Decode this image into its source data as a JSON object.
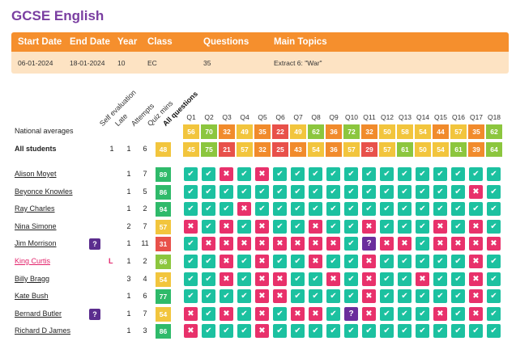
{
  "title": "GCSE English",
  "info": {
    "headers": {
      "start_date": "Start Date",
      "end_date": "End Date",
      "year": "Year",
      "class": "Class",
      "questions": "Questions",
      "main_topics": "Main Topics"
    },
    "values": {
      "start_date": "06-01-2024",
      "end_date": "18-01-2024",
      "year": "10",
      "class": "EC",
      "questions": "35",
      "main_topics": "Extract 6: \"War\""
    }
  },
  "column_headers": {
    "self_evaluation": "Self evaluation",
    "late": "Late",
    "attempts": "Attempts",
    "quiz_mins": "Quiz mins",
    "all_questions": "All questions"
  },
  "questions": [
    "Q1",
    "Q2",
    "Q3",
    "Q4",
    "Q5",
    "Q6",
    "Q7",
    "Q8",
    "Q9",
    "Q10",
    "Q11",
    "Q12",
    "Q13",
    "Q14",
    "Q15",
    "Q16",
    "Q17",
    "Q18"
  ],
  "national_averages": {
    "label": "National averages",
    "values": [
      "56",
      "70",
      "32",
      "49",
      "35",
      "22",
      "49",
      "62",
      "36",
      "72",
      "32",
      "50",
      "58",
      "54",
      "44",
      "57",
      "35",
      "62"
    ]
  },
  "all_students": {
    "label": "All students",
    "late": "1",
    "attempts": "1",
    "quiz_mins": "6",
    "score": "48",
    "values": [
      "45",
      "75",
      "21",
      "57",
      "32",
      "25",
      "43",
      "54",
      "36",
      "57",
      "29",
      "57",
      "61",
      "50",
      "54",
      "61",
      "39",
      "64"
    ]
  },
  "colors": {
    "title": "#7a3ea1",
    "header_orange": "#f58f2d",
    "info_row": "#fde3c3",
    "correct": "#1cc1a0",
    "wrong": "#e8316b",
    "unknown": "#6a2e9c",
    "late": "#e2236b",
    "score_high": "#2fba6a",
    "score_mid": "#8cc63e",
    "score_amber": "#f2c53d",
    "score_orange": "#f18b2c",
    "score_red": "#e8514a"
  },
  "icons": {
    "correct": "check-icon",
    "wrong": "cross-icon",
    "unknown": "question-icon"
  },
  "students": [
    {
      "name": "Alison Moyet",
      "self_eval": "",
      "late": "",
      "attempts": "1",
      "quiz_mins": "7",
      "score": "89",
      "answers": [
        "c",
        "c",
        "w",
        "c",
        "w",
        "c",
        "c",
        "c",
        "c",
        "c",
        "c",
        "c",
        "c",
        "c",
        "c",
        "c",
        "c",
        "c"
      ]
    },
    {
      "name": "Beyonce Knowles",
      "self_eval": "",
      "late": "",
      "attempts": "1",
      "quiz_mins": "5",
      "score": "86",
      "answers": [
        "c",
        "c",
        "c",
        "c",
        "c",
        "c",
        "c",
        "c",
        "c",
        "c",
        "c",
        "c",
        "c",
        "c",
        "c",
        "c",
        "w",
        "c"
      ]
    },
    {
      "name": "Ray Charles",
      "self_eval": "",
      "late": "",
      "attempts": "1",
      "quiz_mins": "2",
      "score": "94",
      "answers": [
        "c",
        "c",
        "c",
        "w",
        "c",
        "c",
        "c",
        "c",
        "c",
        "c",
        "c",
        "c",
        "c",
        "c",
        "c",
        "c",
        "c",
        "c"
      ]
    },
    {
      "name": "Nina Simone",
      "self_eval": "",
      "late": "",
      "attempts": "2",
      "quiz_mins": "7",
      "score": "57",
      "answers": [
        "w",
        "c",
        "w",
        "c",
        "w",
        "c",
        "c",
        "w",
        "c",
        "c",
        "w",
        "c",
        "c",
        "c",
        "w",
        "c",
        "w",
        "c"
      ]
    },
    {
      "name": "Jim Morrison",
      "self_eval": "?",
      "late": "",
      "attempts": "1",
      "quiz_mins": "11",
      "score": "31",
      "answers": [
        "c",
        "w",
        "w",
        "w",
        "w",
        "w",
        "w",
        "w",
        "w",
        "c",
        "u",
        "w",
        "w",
        "c",
        "w",
        "w",
        "w",
        "w"
      ]
    },
    {
      "name": "King Curtis",
      "self_eval": "",
      "late": "L",
      "attempts": "1",
      "quiz_mins": "2",
      "score": "66",
      "answers": [
        "c",
        "c",
        "w",
        "c",
        "w",
        "c",
        "c",
        "w",
        "c",
        "c",
        "w",
        "c",
        "c",
        "c",
        "c",
        "c",
        "w",
        "c"
      ]
    },
    {
      "name": "Billy Bragg",
      "self_eval": "",
      "late": "",
      "attempts": "3",
      "quiz_mins": "4",
      "score": "54",
      "answers": [
        "c",
        "c",
        "w",
        "c",
        "w",
        "w",
        "c",
        "c",
        "w",
        "c",
        "w",
        "c",
        "c",
        "w",
        "c",
        "c",
        "w",
        "c"
      ]
    },
    {
      "name": "Kate Bush",
      "self_eval": "",
      "late": "",
      "attempts": "1",
      "quiz_mins": "6",
      "score": "77",
      "answers": [
        "c",
        "c",
        "c",
        "c",
        "w",
        "w",
        "c",
        "c",
        "c",
        "c",
        "w",
        "c",
        "c",
        "c",
        "c",
        "c",
        "w",
        "c"
      ]
    },
    {
      "name": "Bernard Butler",
      "self_eval": "?",
      "late": "",
      "attempts": "1",
      "quiz_mins": "7",
      "score": "54",
      "answers": [
        "w",
        "c",
        "w",
        "c",
        "w",
        "c",
        "w",
        "w",
        "c",
        "u",
        "w",
        "c",
        "c",
        "c",
        "w",
        "c",
        "w",
        "c"
      ]
    },
    {
      "name": "Richard D James",
      "self_eval": "",
      "late": "",
      "attempts": "1",
      "quiz_mins": "3",
      "score": "86",
      "answers": [
        "w",
        "c",
        "c",
        "c",
        "w",
        "c",
        "c",
        "c",
        "c",
        "c",
        "c",
        "c",
        "c",
        "c",
        "c",
        "c",
        "c",
        "c"
      ]
    }
  ]
}
